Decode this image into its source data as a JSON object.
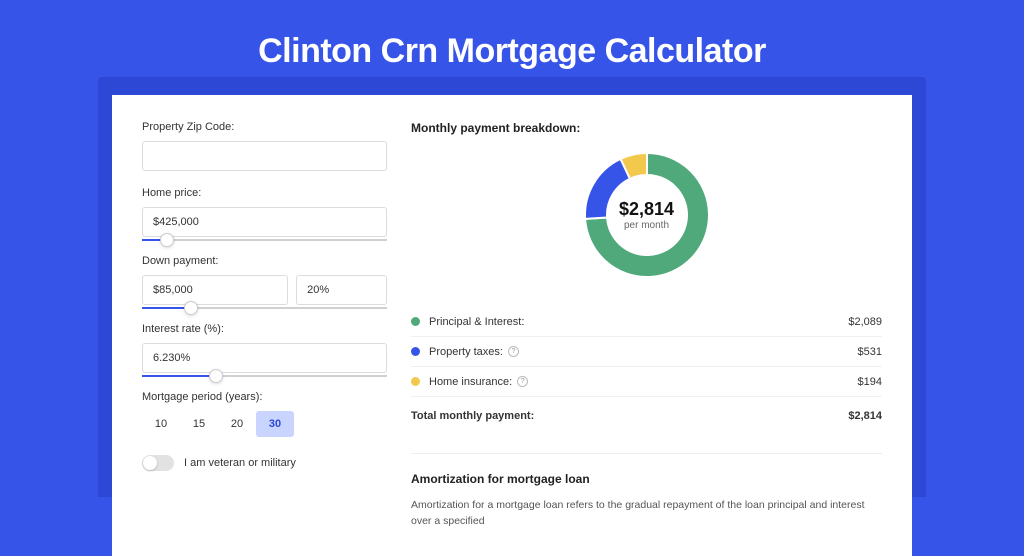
{
  "page": {
    "title": "Clinton Crn Mortgage Calculator",
    "background_color": "#3754e8",
    "shadow_color": "#2d48d4",
    "card_background": "#ffffff"
  },
  "form": {
    "zip": {
      "label": "Property Zip Code:",
      "value": ""
    },
    "home_price": {
      "label": "Home price:",
      "value": "$425,000",
      "slider_percent": 10
    },
    "down_payment": {
      "label": "Down payment:",
      "value": "$85,000",
      "percent": "20%",
      "slider_percent": 20
    },
    "interest_rate": {
      "label": "Interest rate (%):",
      "value": "6.230%",
      "slider_percent": 30
    },
    "period": {
      "label": "Mortgage period (years):",
      "options": [
        "10",
        "15",
        "20",
        "30"
      ],
      "selected": "30"
    },
    "veteran": {
      "label": "I am veteran or military",
      "on": false
    }
  },
  "breakdown": {
    "title": "Monthly payment breakdown:",
    "donut": {
      "amount": "$2,814",
      "sub": "per month",
      "slices": [
        {
          "key": "principal",
          "pct": 74,
          "color": "#4fa97a"
        },
        {
          "key": "taxes",
          "pct": 19,
          "color": "#3754e8"
        },
        {
          "key": "insurance",
          "pct": 7,
          "color": "#f2c94c"
        }
      ],
      "thickness": 22,
      "stroke_width": 2,
      "stroke_color": "#ffffff"
    },
    "rows": [
      {
        "dot": "#4fa97a",
        "label": "Principal & Interest:",
        "value": "$2,089",
        "info": false
      },
      {
        "dot": "#3754e8",
        "label": "Property taxes:",
        "value": "$531",
        "info": true
      },
      {
        "dot": "#f2c94c",
        "label": "Home insurance:",
        "value": "$194",
        "info": true
      }
    ],
    "total": {
      "label": "Total monthly payment:",
      "value": "$2,814"
    }
  },
  "amort": {
    "title": "Amortization for mortgage loan",
    "text": "Amortization for a mortgage loan refers to the gradual repayment of the loan principal and interest over a specified"
  }
}
